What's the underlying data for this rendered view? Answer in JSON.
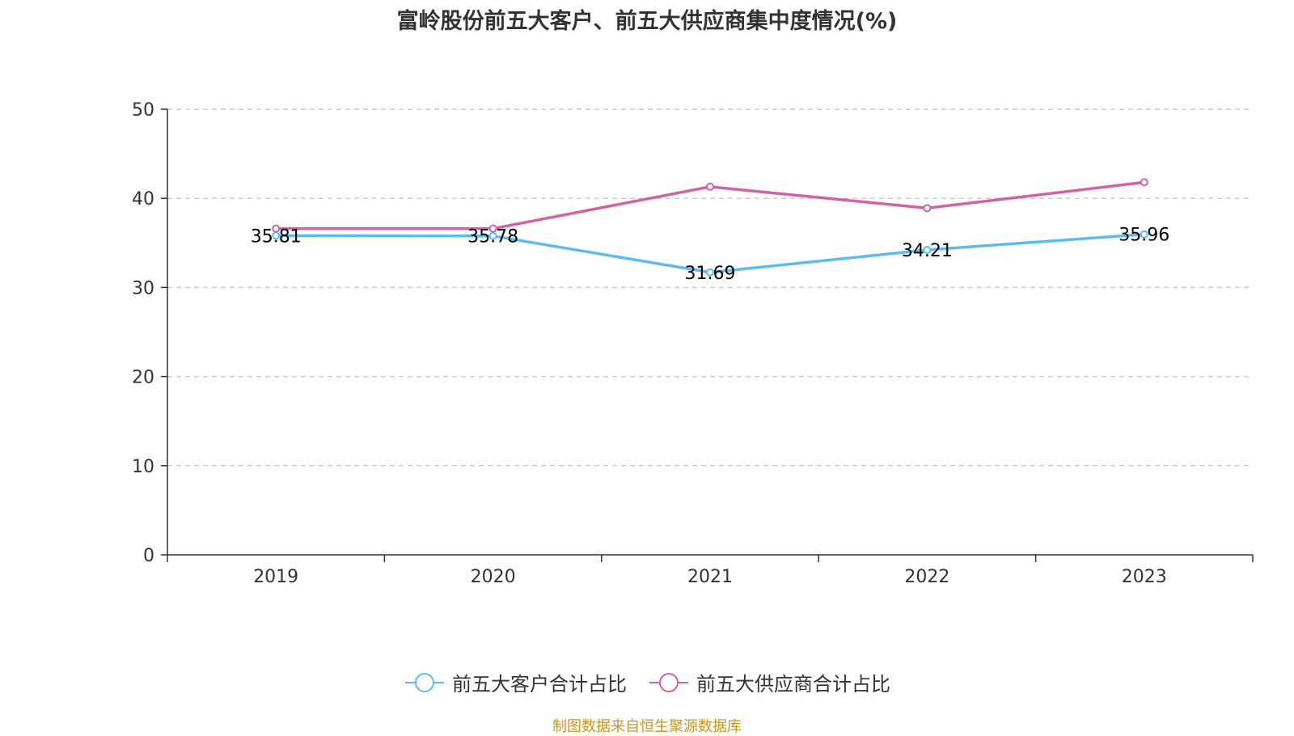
{
  "chart_data": {
    "type": "line",
    "title": "富岭股份前五大客户、前五大供应商集中度情况(%)",
    "categories": [
      "2019",
      "2020",
      "2021",
      "2022",
      "2023"
    ],
    "ylim": [
      0,
      50
    ],
    "yticks": [
      0,
      10,
      20,
      30,
      40,
      50
    ],
    "grid": true,
    "legend_position": "bottom",
    "series": [
      {
        "name": "前五大客户合计占比",
        "color": "#5bbcf2",
        "values": [
          35.81,
          35.78,
          31.69,
          34.21,
          35.96
        ],
        "labels": [
          "35.81",
          "35.78",
          "31.69",
          "34.21",
          "35.96"
        ]
      },
      {
        "name": "前五大供应商合计占比",
        "color": "#d262a8",
        "values": [
          36.6,
          36.6,
          41.3,
          38.9,
          41.8
        ]
      }
    ]
  },
  "footer": {
    "source": "制图数据来自恒生聚源数据库"
  }
}
